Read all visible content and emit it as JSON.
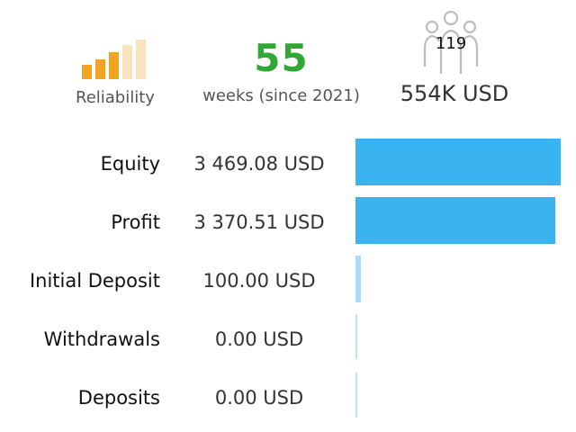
{
  "reliability": {
    "label": "Reliability",
    "level": 3,
    "max": 5,
    "colors": {
      "filled": "#f2a41c",
      "empty": "#fbe2bf"
    }
  },
  "weeks": {
    "value": "55",
    "label": "weeks (since 2021)",
    "color": "#2fa836"
  },
  "subscribers": {
    "count": "119",
    "amount": "554K USD",
    "icon": "people-group-icon"
  },
  "stats": {
    "bar_color": "#3ab4f0",
    "rows": [
      {
        "label": "Equity",
        "value": "3 469.08 USD",
        "amount": 3469.08
      },
      {
        "label": "Profit",
        "value": "3 370.51 USD",
        "amount": 3370.51
      },
      {
        "label": "Initial Deposit",
        "value": "100.00 USD",
        "amount": 100.0
      },
      {
        "label": "Withdrawals",
        "value": "0.00 USD",
        "amount": 0.0
      },
      {
        "label": "Deposits",
        "value": "0.00 USD",
        "amount": 0.0
      }
    ]
  }
}
